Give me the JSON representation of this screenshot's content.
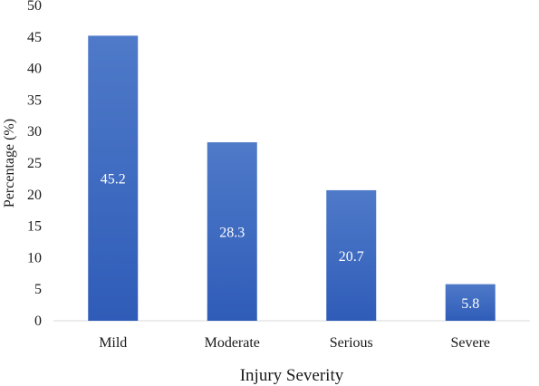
{
  "chart_data": {
    "type": "bar",
    "title": "",
    "xlabel": "Injury Severity",
    "ylabel": "Percentage (%)",
    "categories": [
      "Mild",
      "Moderate",
      "Serious",
      "Severe"
    ],
    "values": [
      45.2,
      28.3,
      20.7,
      5.8
    ],
    "data_labels": [
      "45.2",
      "28.3",
      "20.7",
      "5.8"
    ],
    "ylim": [
      0,
      50
    ],
    "yticks": [
      0,
      5,
      10,
      15,
      20,
      25,
      30,
      35,
      40,
      45,
      50
    ],
    "grid": false,
    "legend": "none",
    "colors": {
      "bar_top": "#4f7ac9",
      "bar_bottom": "#2f5cb8",
      "axis": "#d9d9d9"
    }
  }
}
